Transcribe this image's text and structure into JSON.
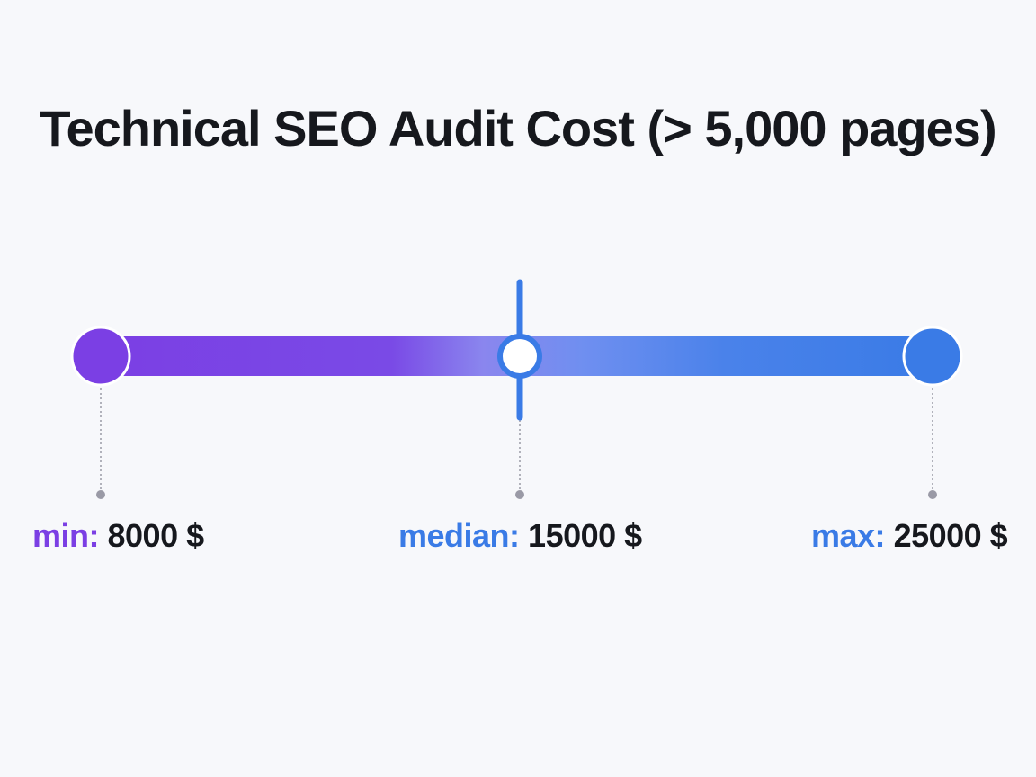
{
  "title": "Technical SEO Audit Cost (> 5,000 pages)",
  "colors": {
    "min": "#7b3fe4",
    "median": "#3a7be6",
    "max": "#3a7be6",
    "median_marker": "#3a7be6",
    "guide_line": "#9a9aa6",
    "text": "#16181d"
  },
  "chart_data": {
    "type": "range",
    "unit": "$",
    "min": 8000,
    "median": 15000,
    "max": 25000,
    "labels": {
      "min_key": "min:",
      "min_value": "8000 $",
      "median_key": "median:",
      "median_value": "15000 $",
      "max_key": "max:",
      "max_value": "25000 $"
    }
  }
}
